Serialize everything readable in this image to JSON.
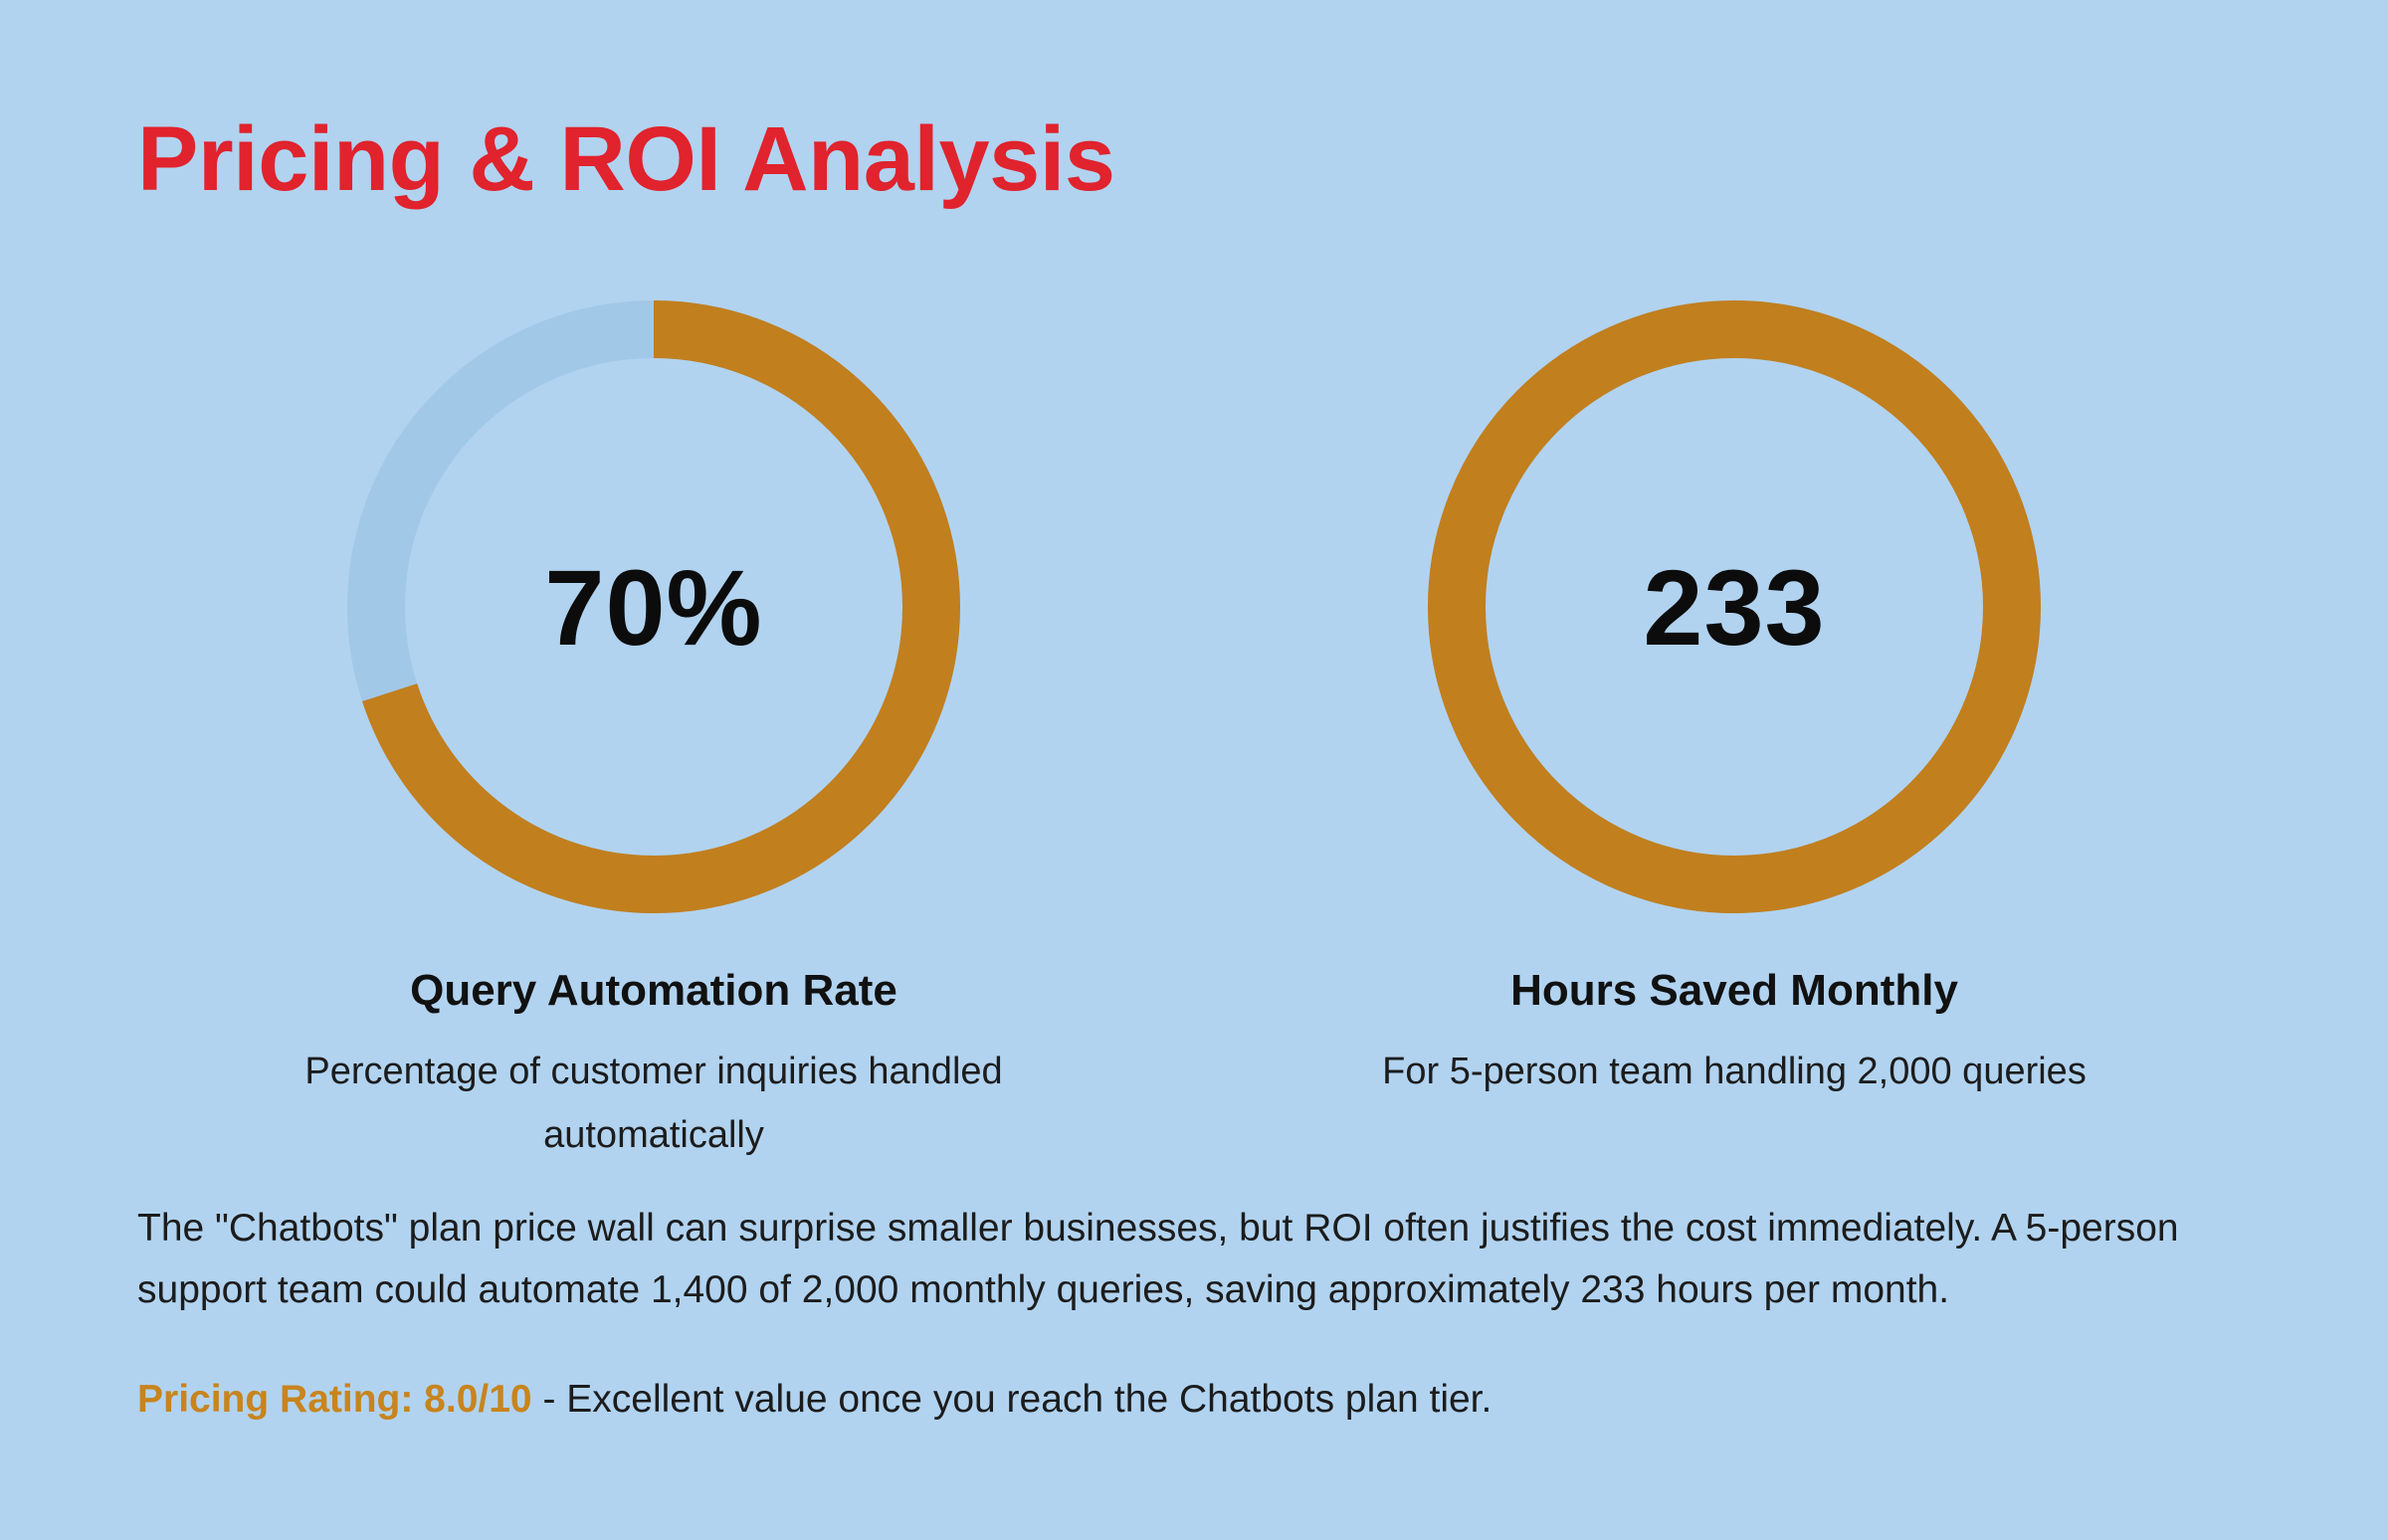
{
  "title": "Pricing & ROI Analysis",
  "colors": {
    "accent": "#c17f1e",
    "track": "#9ec6e6",
    "title": "#e0232d",
    "background": "#b1d3f0",
    "rating": "#c8841d"
  },
  "metrics": [
    {
      "value_label": "70%",
      "label": "Query Automation Rate",
      "description": "Percentage of customer inquiries handled automatically"
    },
    {
      "value_label": "233",
      "label": "Hours Saved Monthly",
      "description": "For 5-person team handling 2,000 queries"
    }
  ],
  "chart_data": [
    {
      "type": "pie",
      "title": "Query Automation Rate",
      "values": [
        70,
        30
      ],
      "center_label": "70%"
    },
    {
      "type": "pie",
      "title": "Hours Saved Monthly",
      "values": [
        100,
        0
      ],
      "center_label": "233"
    }
  ],
  "body_text": "The \"Chatbots\" plan price wall can surprise smaller businesses, but ROI often justifies the cost immediately. A 5-person support team could automate 1,400 of 2,000 monthly queries, saving approximately 233 hours per month.",
  "rating": {
    "label": "Pricing Rating: 8.0/10",
    "text": " - Excellent value once you reach the Chatbots plan tier."
  }
}
